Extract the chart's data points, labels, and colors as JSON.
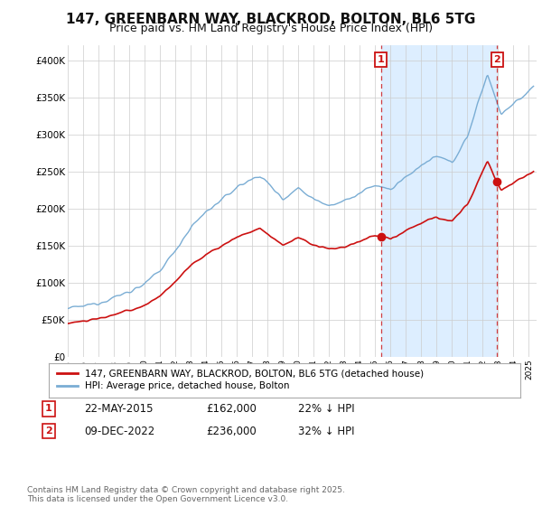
{
  "title": "147, GREENBARN WAY, BLACKROD, BOLTON, BL6 5TG",
  "subtitle": "Price paid vs. HM Land Registry's House Price Index (HPI)",
  "title_fontsize": 11,
  "subtitle_fontsize": 9,
  "bg_color": "#ffffff",
  "plot_bg_color": "#ffffff",
  "grid_color": "#cccccc",
  "hpi_color": "#7aadd4",
  "price_color": "#cc1111",
  "marker_color": "#cc1111",
  "shade_color": "#ddeeff",
  "ylim": [
    0,
    420000
  ],
  "yticks": [
    0,
    50000,
    100000,
    150000,
    200000,
    250000,
    300000,
    350000,
    400000
  ],
  "ytick_labels": [
    "£0",
    "£50K",
    "£100K",
    "£150K",
    "£200K",
    "£250K",
    "£300K",
    "£350K",
    "£400K"
  ],
  "xlim_start": 1995,
  "xlim_end": 2025.5,
  "annotations": [
    {
      "label": "1",
      "date_x": 2015.38,
      "y": 162000,
      "color": "#cc1111"
    },
    {
      "label": "2",
      "date_x": 2022.94,
      "y": 236000,
      "color": "#cc1111"
    }
  ],
  "table_rows": [
    {
      "num": "1",
      "date": "22-MAY-2015",
      "price": "£162,000",
      "note": "22% ↓ HPI"
    },
    {
      "num": "2",
      "date": "09-DEC-2022",
      "price": "£236,000",
      "note": "32% ↓ HPI"
    }
  ],
  "footer": "Contains HM Land Registry data © Crown copyright and database right 2025.\nThis data is licensed under the Open Government Licence v3.0.",
  "legend_label_price": "147, GREENBARN WAY, BLACKROD, BOLTON, BL6 5TG (detached house)",
  "legend_label_hpi": "HPI: Average price, detached house, Bolton"
}
